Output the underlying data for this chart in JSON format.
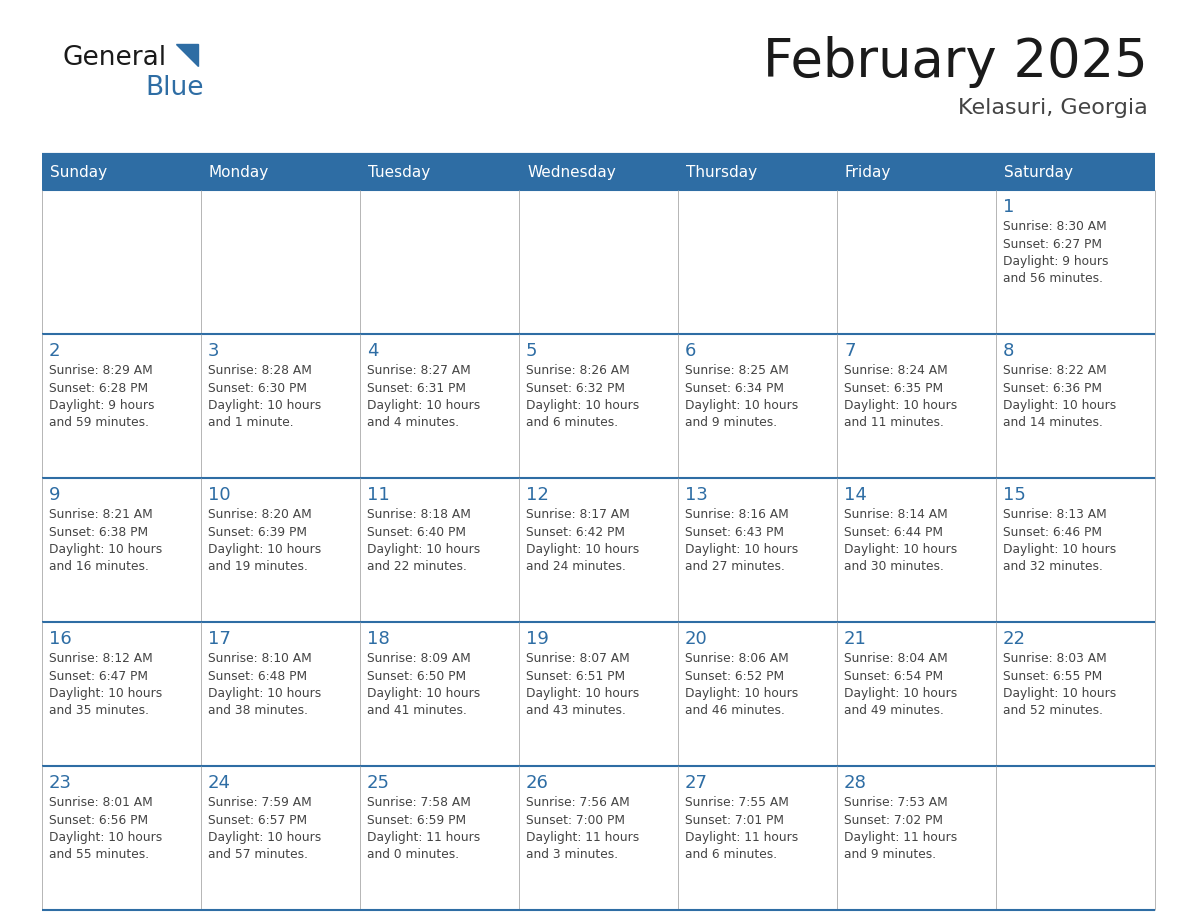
{
  "title": "February 2025",
  "subtitle": "Kelasuri, Georgia",
  "header_bg_color": "#2E6DA4",
  "header_text_color": "#FFFFFF",
  "cell_bg_color": "#FFFFFF",
  "border_color": "#2E6DA4",
  "thin_border_color": "#AAAAAA",
  "day_headers": [
    "Sunday",
    "Monday",
    "Tuesday",
    "Wednesday",
    "Thursday",
    "Friday",
    "Saturday"
  ],
  "title_color": "#1a1a1a",
  "subtitle_color": "#444444",
  "day_num_color": "#2E6DA4",
  "cell_text_color": "#444444",
  "logo_general_color": "#1a1a1a",
  "logo_blue_color": "#2E6DA4",
  "logo_triangle_color": "#2E6DA4",
  "calendar": [
    [
      null,
      null,
      null,
      null,
      null,
      null,
      {
        "day": 1,
        "sunrise": "8:30 AM",
        "sunset": "6:27 PM",
        "daylight": "9 hours",
        "daylight2": "and 56 minutes."
      }
    ],
    [
      {
        "day": 2,
        "sunrise": "8:29 AM",
        "sunset": "6:28 PM",
        "daylight": "9 hours",
        "daylight2": "and 59 minutes."
      },
      {
        "day": 3,
        "sunrise": "8:28 AM",
        "sunset": "6:30 PM",
        "daylight": "10 hours",
        "daylight2": "and 1 minute."
      },
      {
        "day": 4,
        "sunrise": "8:27 AM",
        "sunset": "6:31 PM",
        "daylight": "10 hours",
        "daylight2": "and 4 minutes."
      },
      {
        "day": 5,
        "sunrise": "8:26 AM",
        "sunset": "6:32 PM",
        "daylight": "10 hours",
        "daylight2": "and 6 minutes."
      },
      {
        "day": 6,
        "sunrise": "8:25 AM",
        "sunset": "6:34 PM",
        "daylight": "10 hours",
        "daylight2": "and 9 minutes."
      },
      {
        "day": 7,
        "sunrise": "8:24 AM",
        "sunset": "6:35 PM",
        "daylight": "10 hours",
        "daylight2": "and 11 minutes."
      },
      {
        "day": 8,
        "sunrise": "8:22 AM",
        "sunset": "6:36 PM",
        "daylight": "10 hours",
        "daylight2": "and 14 minutes."
      }
    ],
    [
      {
        "day": 9,
        "sunrise": "8:21 AM",
        "sunset": "6:38 PM",
        "daylight": "10 hours",
        "daylight2": "and 16 minutes."
      },
      {
        "day": 10,
        "sunrise": "8:20 AM",
        "sunset": "6:39 PM",
        "daylight": "10 hours",
        "daylight2": "and 19 minutes."
      },
      {
        "day": 11,
        "sunrise": "8:18 AM",
        "sunset": "6:40 PM",
        "daylight": "10 hours",
        "daylight2": "and 22 minutes."
      },
      {
        "day": 12,
        "sunrise": "8:17 AM",
        "sunset": "6:42 PM",
        "daylight": "10 hours",
        "daylight2": "and 24 minutes."
      },
      {
        "day": 13,
        "sunrise": "8:16 AM",
        "sunset": "6:43 PM",
        "daylight": "10 hours",
        "daylight2": "and 27 minutes."
      },
      {
        "day": 14,
        "sunrise": "8:14 AM",
        "sunset": "6:44 PM",
        "daylight": "10 hours",
        "daylight2": "and 30 minutes."
      },
      {
        "day": 15,
        "sunrise": "8:13 AM",
        "sunset": "6:46 PM",
        "daylight": "10 hours",
        "daylight2": "and 32 minutes."
      }
    ],
    [
      {
        "day": 16,
        "sunrise": "8:12 AM",
        "sunset": "6:47 PM",
        "daylight": "10 hours",
        "daylight2": "and 35 minutes."
      },
      {
        "day": 17,
        "sunrise": "8:10 AM",
        "sunset": "6:48 PM",
        "daylight": "10 hours",
        "daylight2": "and 38 minutes."
      },
      {
        "day": 18,
        "sunrise": "8:09 AM",
        "sunset": "6:50 PM",
        "daylight": "10 hours",
        "daylight2": "and 41 minutes."
      },
      {
        "day": 19,
        "sunrise": "8:07 AM",
        "sunset": "6:51 PM",
        "daylight": "10 hours",
        "daylight2": "and 43 minutes."
      },
      {
        "day": 20,
        "sunrise": "8:06 AM",
        "sunset": "6:52 PM",
        "daylight": "10 hours",
        "daylight2": "and 46 minutes."
      },
      {
        "day": 21,
        "sunrise": "8:04 AM",
        "sunset": "6:54 PM",
        "daylight": "10 hours",
        "daylight2": "and 49 minutes."
      },
      {
        "day": 22,
        "sunrise": "8:03 AM",
        "sunset": "6:55 PM",
        "daylight": "10 hours",
        "daylight2": "and 52 minutes."
      }
    ],
    [
      {
        "day": 23,
        "sunrise": "8:01 AM",
        "sunset": "6:56 PM",
        "daylight": "10 hours",
        "daylight2": "and 55 minutes."
      },
      {
        "day": 24,
        "sunrise": "7:59 AM",
        "sunset": "6:57 PM",
        "daylight": "10 hours",
        "daylight2": "and 57 minutes."
      },
      {
        "day": 25,
        "sunrise": "7:58 AM",
        "sunset": "6:59 PM",
        "daylight": "11 hours",
        "daylight2": "and 0 minutes."
      },
      {
        "day": 26,
        "sunrise": "7:56 AM",
        "sunset": "7:00 PM",
        "daylight": "11 hours",
        "daylight2": "and 3 minutes."
      },
      {
        "day": 27,
        "sunrise": "7:55 AM",
        "sunset": "7:01 PM",
        "daylight": "11 hours",
        "daylight2": "and 6 minutes."
      },
      {
        "day": 28,
        "sunrise": "7:53 AM",
        "sunset": "7:02 PM",
        "daylight": "11 hours",
        "daylight2": "and 9 minutes."
      },
      null
    ]
  ]
}
